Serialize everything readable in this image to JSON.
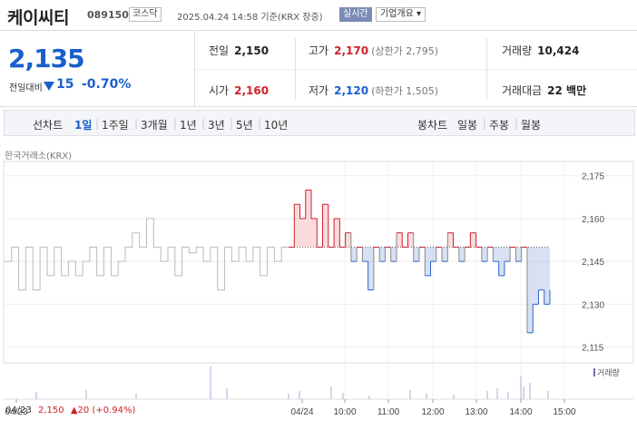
{
  "header": {
    "name": "케이씨티",
    "code": "089150",
    "market": "코스닥",
    "datetime": "2025.04.24 14:58 기준(KRX 장중)",
    "live_label": "실시간",
    "company_label": "기업개요 ▾"
  },
  "quote": {
    "price": "2,135",
    "change_label": "전일대비",
    "change": "15",
    "change_pct": "-0.70%",
    "prev_close_label": "전일",
    "prev_close": "2,150",
    "high_label": "고가",
    "high": "2,170",
    "upper_limit": "(상한가 2,795)",
    "volume_label": "거래량",
    "volume": "10,424",
    "open_label": "시가",
    "open": "2,160",
    "low_label": "저가",
    "low": "2,120",
    "lower_limit": "(하한가 1,505)",
    "amount_label": "거래대금",
    "amount": "22 백만"
  },
  "periods": {
    "line_label": "선차트",
    "line_items": [
      "1일",
      "1주일",
      "3개월",
      "1년",
      "3년",
      "5년",
      "10년"
    ],
    "selected": "1일",
    "candle_label": "봉차트",
    "candle_items": [
      "일봉",
      "주봉",
      "월봉"
    ]
  },
  "source": "한국거래소(KRX)",
  "chart_data": {
    "type": "line",
    "y_ticks": [
      "2,175",
      "2,160",
      "2,145",
      "2,130",
      "2,115"
    ],
    "ylim": [
      2112,
      2180
    ],
    "x_ticks": [
      "04/23",
      "04/24",
      "10:00",
      "11:00",
      "12:00",
      "13:00",
      "14:00",
      "15:00"
    ],
    "reference_price": 2150,
    "volume_legend": "거래량",
    "prev_day_summary": "04/23 2,150 ▲20 (+0.94%)",
    "prev_day_label": "04/23",
    "prev_day_price": "2,150",
    "prev_day_change": "▲20 (+0.94%)",
    "series": [
      {
        "day": "04/23",
        "color": "#bbbbbb",
        "values": [
          2145,
          2150,
          2135,
          2150,
          2135,
          2150,
          2140,
          2150,
          2140,
          2145,
          2140,
          2145,
          2150,
          2140,
          2150,
          2140,
          2145,
          2150,
          2155,
          2150,
          2160,
          2150,
          2145,
          2150,
          2140,
          2150,
          2148,
          2150,
          2145,
          2150,
          2135,
          2150,
          2145,
          2150,
          2145,
          2150,
          2140,
          2150,
          2145,
          2150,
          2150
        ]
      },
      {
        "day": "04/24",
        "values": [
          2150,
          2165,
          2160,
          2170,
          2160,
          2150,
          2165,
          2150,
          2160,
          2150,
          2155,
          2145,
          2150,
          2145,
          2135,
          2150,
          2145,
          2150,
          2145,
          2155,
          2150,
          2155,
          2145,
          2150,
          2140,
          2145,
          2150,
          2145,
          2155,
          2150,
          2145,
          2150,
          2155,
          2150,
          2145,
          2150,
          2145,
          2140,
          2145,
          2150,
          2145,
          2150,
          2120,
          2130,
          2135,
          2130,
          2135
        ]
      }
    ]
  }
}
